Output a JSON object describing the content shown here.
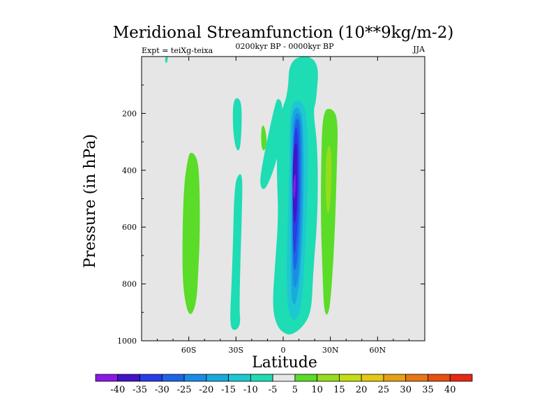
{
  "chart_data": {
    "type": "contour",
    "title": "Meridional Streamfunction (10**9kg/m-2)",
    "left_label": "Expt = teiXg-teixa",
    "center_label": "0200kyr BP - 0000kyr BP",
    "right_label": "JJA",
    "xlabel": "Latitude",
    "ylabel": "Pressure (in hPa)",
    "xlim": [
      -90,
      90
    ],
    "ylim": [
      0,
      1000
    ],
    "y_reversed": true,
    "x_ticks": [
      {
        "value": -60,
        "label": "60S"
      },
      {
        "value": -30,
        "label": "30S"
      },
      {
        "value": 0,
        "label": "0"
      },
      {
        "value": 30,
        "label": "30N"
      },
      {
        "value": 60,
        "label": "60N"
      }
    ],
    "y_ticks": [
      {
        "value": 200,
        "label": "200"
      },
      {
        "value": 400,
        "label": "400"
      },
      {
        "value": 600,
        "label": "600"
      },
      {
        "value": 800,
        "label": "800"
      },
      {
        "value": 1000,
        "label": "1000"
      }
    ],
    "background_color": "#e6e6e6",
    "levels": [
      -40,
      -35,
      -30,
      -25,
      -20,
      -15,
      -10,
      -5,
      5,
      10,
      15,
      20,
      25,
      30,
      35,
      40
    ],
    "colors": [
      "#8a19e6",
      "#4214c8",
      "#2a3ce6",
      "#1f64e6",
      "#1a8ce6",
      "#19aadc",
      "#1ec8d2",
      "#1edcb4",
      "#e6e6e6",
      "#5adc28",
      "#96dc1e",
      "#c8dc14",
      "#e6c814",
      "#e6a014",
      "#e67814",
      "#e65014",
      "#e62814"
    ],
    "regions": [
      {
        "name": "sh-positive-cell",
        "value": 7,
        "color": "#5adc28",
        "points": [
          [
            -61,
            370
          ],
          [
            -59,
            330
          ],
          [
            -54,
            360
          ],
          [
            -53,
            480
          ],
          [
            -53,
            640
          ],
          [
            -54,
            760
          ],
          [
            -55,
            860
          ],
          [
            -58,
            910
          ],
          [
            -61,
            900
          ],
          [
            -64,
            800
          ],
          [
            -64,
            600
          ],
          [
            -63,
            450
          ]
        ]
      },
      {
        "name": "high-lat-drip",
        "value": -7,
        "color": "#1edcb4",
        "points": [
          [
            -75,
            0
          ],
          [
            -73,
            0
          ],
          [
            -74,
            25
          ],
          [
            -75,
            20
          ]
        ]
      },
      {
        "name": "negative-streak-east",
        "value": -7,
        "color": "#1edcb4",
        "points": [
          [
            -5,
            160
          ],
          [
            -3,
            145
          ],
          [
            0,
            170
          ],
          [
            -2,
            330
          ],
          [
            -10,
            460
          ],
          [
            -14,
            470
          ],
          [
            -15,
            420
          ]
        ]
      },
      {
        "name": "negative-lower-southern",
        "value": -6,
        "color": "#1edcb4",
        "points": [
          [
            -31,
            450
          ],
          [
            -28,
            410
          ],
          [
            -26,
            420
          ],
          [
            -26,
            500
          ],
          [
            -28,
            880
          ],
          [
            -27,
            940
          ],
          [
            -30,
            965
          ],
          [
            -34,
            955
          ],
          [
            -33,
            820
          ],
          [
            -32,
            680
          ]
        ]
      },
      {
        "name": "negative-streak-west",
        "value": -7,
        "color": "#1edcb4",
        "points": [
          [
            -32,
            160
          ],
          [
            -29,
            140
          ],
          [
            -26,
            170
          ],
          [
            -27,
            330
          ],
          [
            -30,
            330
          ],
          [
            -32,
            260
          ]
        ]
      },
      {
        "name": "small-positive-blob",
        "value": 7,
        "color": "#5adc28",
        "points": [
          [
            -14,
            245
          ],
          [
            -12,
            240
          ],
          [
            -10,
            300
          ],
          [
            -12,
            335
          ],
          [
            -14,
            320
          ]
        ]
      },
      {
        "name": "tropical-core-outer",
        "value": -7,
        "color": "#1edcb4",
        "points": [
          [
            3,
            135
          ],
          [
            4,
            0
          ],
          [
            23,
            0
          ],
          [
            21,
            160
          ],
          [
            19,
            190
          ],
          [
            22,
            320
          ],
          [
            22,
            560
          ],
          [
            19,
            760
          ],
          [
            18,
            900
          ],
          [
            12,
            955
          ],
          [
            5,
            980
          ],
          [
            1,
            975
          ],
          [
            -4,
            950
          ],
          [
            -7,
            880
          ],
          [
            -5,
            720
          ],
          [
            -3,
            560
          ],
          [
            -4,
            430
          ],
          [
            -4,
            300
          ],
          [
            -2,
            200
          ]
        ]
      },
      {
        "name": "tropical-core-10",
        "value": -12,
        "color": "#1ec8d2",
        "points": [
          [
            5,
            170
          ],
          [
            9,
            150
          ],
          [
            14,
            170
          ],
          [
            16,
            300
          ],
          [
            15,
            560
          ],
          [
            13,
            780
          ],
          [
            11,
            900
          ],
          [
            7,
            935
          ],
          [
            3,
            900
          ],
          [
            2,
            760
          ],
          [
            3,
            560
          ],
          [
            4,
            370
          ],
          [
            4,
            250
          ]
        ]
      },
      {
        "name": "tropical-core-15",
        "value": -17,
        "color": "#19aadc",
        "points": [
          [
            6,
            185
          ],
          [
            10,
            175
          ],
          [
            13,
            230
          ],
          [
            13,
            540
          ],
          [
            11,
            770
          ],
          [
            8,
            880
          ],
          [
            5,
            860
          ],
          [
            5,
            720
          ],
          [
            5,
            500
          ],
          [
            5,
            260
          ]
        ]
      },
      {
        "name": "tropical-core-20",
        "value": -22,
        "color": "#1a8ce6",
        "points": [
          [
            7,
            205
          ],
          [
            10,
            195
          ],
          [
            12,
            250
          ],
          [
            12,
            530
          ],
          [
            10,
            760
          ],
          [
            8,
            820
          ],
          [
            6,
            800
          ],
          [
            6,
            600
          ],
          [
            6,
            300
          ]
        ]
      },
      {
        "name": "tropical-core-25",
        "value": -27,
        "color": "#1f64e6",
        "points": [
          [
            7,
            225
          ],
          [
            10,
            215
          ],
          [
            11,
            280
          ],
          [
            11,
            520
          ],
          [
            9,
            730
          ],
          [
            7,
            760
          ],
          [
            6,
            700
          ],
          [
            6,
            450
          ]
        ]
      },
      {
        "name": "tropical-core-30",
        "value": -32,
        "color": "#2a3ce6",
        "points": [
          [
            7,
            255
          ],
          [
            9,
            245
          ],
          [
            10,
            320
          ],
          [
            10,
            520
          ],
          [
            8,
            680
          ],
          [
            7,
            700
          ],
          [
            6,
            620
          ],
          [
            6,
            400
          ]
        ]
      },
      {
        "name": "tropical-core-35",
        "value": -37,
        "color": "#4214c8",
        "points": [
          [
            7,
            310
          ],
          [
            9,
            300
          ],
          [
            9,
            380
          ],
          [
            9,
            500
          ],
          [
            8,
            580
          ],
          [
            7,
            590
          ],
          [
            6,
            520
          ],
          [
            6,
            380
          ]
        ]
      },
      {
        "name": "tropical-core-40",
        "value": -42,
        "color": "#8a19e6",
        "points": [
          [
            7,
            420
          ],
          [
            8,
            410
          ],
          [
            8,
            470
          ],
          [
            7,
            510
          ],
          [
            6,
            470
          ]
        ]
      },
      {
        "name": "nh-positive-cell",
        "value": 7,
        "color": "#5adc28",
        "points": [
          [
            25,
            190
          ],
          [
            31,
            180
          ],
          [
            35,
            220
          ],
          [
            34,
            400
          ],
          [
            33,
            600
          ],
          [
            31,
            800
          ],
          [
            29,
            910
          ],
          [
            26,
            905
          ],
          [
            25,
            760
          ],
          [
            24,
            600
          ],
          [
            24,
            400
          ]
        ]
      },
      {
        "name": "nh-positive-cell-inner",
        "value": 12,
        "color": "#96dc1e",
        "points": [
          [
            28,
            320
          ],
          [
            30,
            310
          ],
          [
            31,
            380
          ],
          [
            30,
            530
          ],
          [
            28,
            560
          ],
          [
            27,
            480
          ],
          [
            27,
            380
          ]
        ]
      }
    ]
  },
  "colorbar": {
    "labels": [
      "-40",
      "-35",
      "-30",
      "-25",
      "-20",
      "-15",
      "-10",
      "-5",
      "5",
      "10",
      "15",
      "20",
      "25",
      "30",
      "35",
      "40"
    ]
  }
}
